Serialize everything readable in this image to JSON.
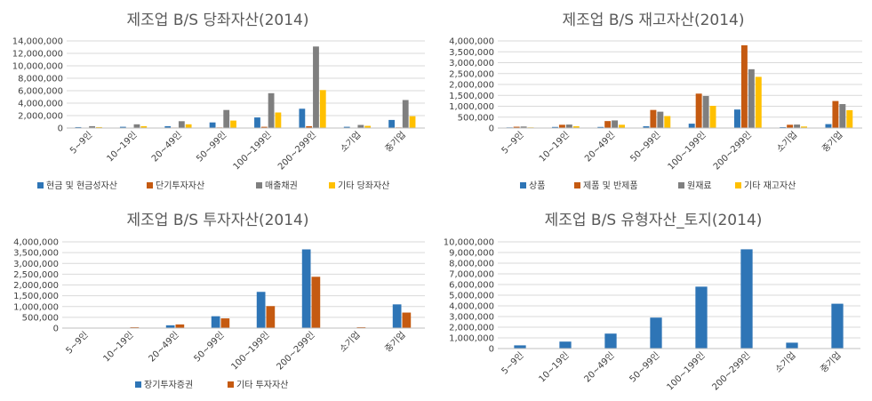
{
  "chart_data": [
    {
      "type": "bar",
      "title": "제조업 B/S 당좌자산(2014)",
      "categories": [
        "5~9인",
        "10~19인",
        "20~49인",
        "50~99인",
        "100~199인",
        "200~299인",
        "소기업",
        "중기업"
      ],
      "ylim": [
        0,
        14000000
      ],
      "yticks": [
        "0",
        "2,000,000",
        "4,000,000",
        "6,000,000",
        "8,000,000",
        "10,000,000",
        "12,000,000",
        "14,000,000"
      ],
      "series": [
        {
          "name": "현금 및 현금성자산",
          "color": "#2E75B6",
          "values": [
            150000,
            200000,
            300000,
            900000,
            1700000,
            3100000,
            200000,
            1300000
          ]
        },
        {
          "name": "단기투자자산",
          "color": "#C55A11",
          "values": [
            50000,
            60000,
            80000,
            100000,
            200000,
            300000,
            70000,
            100000
          ]
        },
        {
          "name": "매출채권",
          "color": "#7F7F7F",
          "values": [
            300000,
            600000,
            1100000,
            2900000,
            5600000,
            13100000,
            500000,
            4500000
          ]
        },
        {
          "name": "기타 당좌자산",
          "color": "#FFC000",
          "values": [
            150000,
            300000,
            600000,
            1200000,
            2500000,
            6100000,
            350000,
            1900000
          ]
        }
      ]
    },
    {
      "type": "bar",
      "title": "제조업 B/S 재고자산(2014)",
      "categories": [
        "5~9인",
        "10~19인",
        "20~49인",
        "50~99인",
        "100~199인",
        "200~299인",
        "소기업",
        "중기업"
      ],
      "ylim": [
        0,
        4000000
      ],
      "yticks": [
        "0",
        "500,000",
        "1,000,000",
        "1,500,000",
        "2,000,000",
        "2,500,000",
        "3,000,000",
        "3,500,000",
        "4,000,000"
      ],
      "series": [
        {
          "name": "상품",
          "color": "#2E75B6",
          "values": [
            30000,
            50000,
            50000,
            80000,
            200000,
            850000,
            40000,
            180000
          ]
        },
        {
          "name": "제품 및 반제품",
          "color": "#C55A11",
          "values": [
            60000,
            150000,
            320000,
            830000,
            1580000,
            3800000,
            150000,
            1240000
          ]
        },
        {
          "name": "원재료",
          "color": "#7F7F7F",
          "values": [
            70000,
            160000,
            350000,
            750000,
            1470000,
            2700000,
            160000,
            1100000
          ]
        },
        {
          "name": "기타 재고자산",
          "color": "#FFC000",
          "values": [
            30000,
            80000,
            150000,
            550000,
            1020000,
            2350000,
            70000,
            820000
          ]
        }
      ]
    },
    {
      "type": "bar",
      "title": "제조업 B/S 투자자산(2014)",
      "categories": [
        "5~9인",
        "10~19인",
        "20~49인",
        "50~99인",
        "100~199인",
        "200~299인",
        "소기업",
        "중기업"
      ],
      "ylim": [
        0,
        4000000
      ],
      "yticks": [
        "0",
        "500,000",
        "1,000,000",
        "1,500,000",
        "2,000,000",
        "2,500,000",
        "3,000,000",
        "3,500,000",
        "4,000,000"
      ],
      "series": [
        {
          "name": "장기투자증권",
          "color": "#2E75B6",
          "values": [
            10000,
            20000,
            130000,
            550000,
            1680000,
            3650000,
            20000,
            1100000
          ]
        },
        {
          "name": "기타 투자자산",
          "color": "#C55A11",
          "values": [
            10000,
            40000,
            170000,
            450000,
            1020000,
            2380000,
            40000,
            720000
          ]
        }
      ]
    },
    {
      "type": "bar",
      "title": "제조업 B/S 유형자산_토지(2014)",
      "categories": [
        "5~9인",
        "10~19인",
        "20~49인",
        "50~99인",
        "100~199인",
        "200~299인",
        "소기업",
        "중기업"
      ],
      "ylim": [
        0,
        10000000
      ],
      "yticks": [
        "0",
        "1,000,000",
        "2,000,000",
        "3,000,000",
        "4,000,000",
        "5,000,000",
        "6,000,000",
        "7,000,000",
        "8,000,000",
        "9,000,000",
        "10,000,000"
      ],
      "series": [
        {
          "name": "토지",
          "color": "#2E75B6",
          "values": [
            300000,
            650000,
            1400000,
            2900000,
            5800000,
            9300000,
            550000,
            4200000
          ]
        }
      ],
      "legend": false
    }
  ]
}
